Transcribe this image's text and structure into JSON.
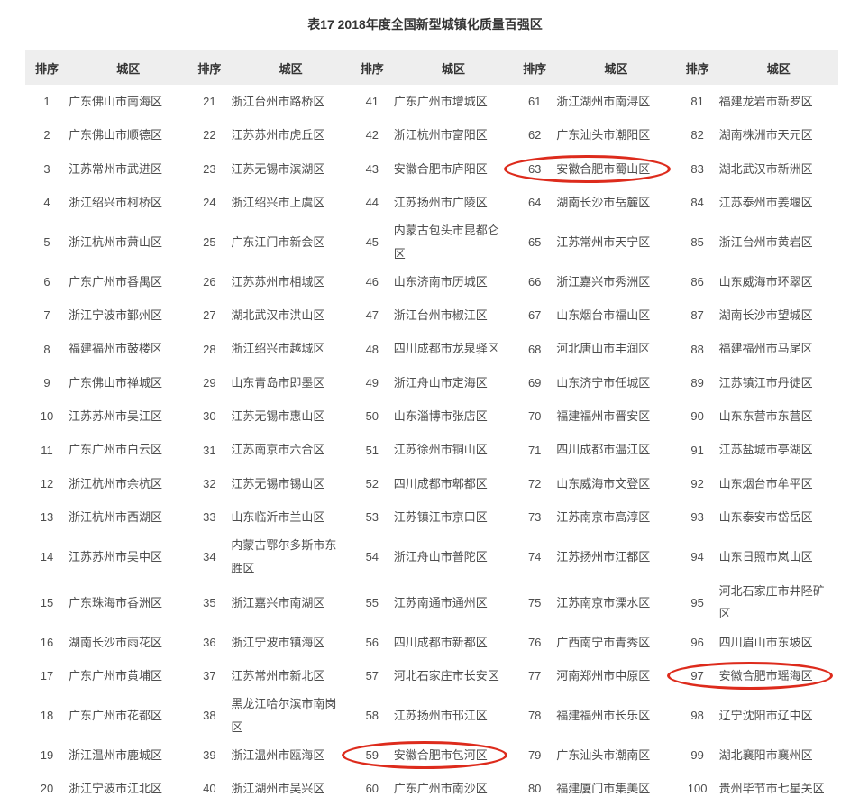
{
  "title": "表17 2018年度全国新型城镇化质量百强区",
  "header": {
    "rank_label": "排序",
    "district_label": "城区"
  },
  "colors": {
    "circle": "#dd2b1c",
    "header_bg": "#eeeeee",
    "text": "#4d4d4d"
  },
  "columns": [
    {
      "entries": [
        {
          "rank": "1",
          "district": "广东佛山市南海区",
          "circled": false
        },
        {
          "rank": "2",
          "district": "广东佛山市顺德区",
          "circled": false
        },
        {
          "rank": "3",
          "district": "江苏常州市武进区",
          "circled": false
        },
        {
          "rank": "4",
          "district": "浙江绍兴市柯桥区",
          "circled": false
        },
        {
          "rank": "5",
          "district": "浙江杭州市萧山区",
          "circled": false
        },
        {
          "rank": "6",
          "district": "广东广州市番禺区",
          "circled": false
        },
        {
          "rank": "7",
          "district": "浙江宁波市鄞州区",
          "circled": false
        },
        {
          "rank": "8",
          "district": "福建福州市鼓楼区",
          "circled": false
        },
        {
          "rank": "9",
          "district": "广东佛山市禅城区",
          "circled": false
        },
        {
          "rank": "10",
          "district": "江苏苏州市吴江区",
          "circled": false
        },
        {
          "rank": "11",
          "district": "广东广州市白云区",
          "circled": false
        },
        {
          "rank": "12",
          "district": "浙江杭州市余杭区",
          "circled": false
        },
        {
          "rank": "13",
          "district": "浙江杭州市西湖区",
          "circled": false
        },
        {
          "rank": "14",
          "district": "江苏苏州市吴中区",
          "circled": false
        },
        {
          "rank": "15",
          "district": "广东珠海市香洲区",
          "circled": false
        },
        {
          "rank": "16",
          "district": "湖南长沙市雨花区",
          "circled": false
        },
        {
          "rank": "17",
          "district": "广东广州市黄埔区",
          "circled": false
        },
        {
          "rank": "18",
          "district": "广东广州市花都区",
          "circled": false
        },
        {
          "rank": "19",
          "district": "浙江温州市鹿城区",
          "circled": false
        },
        {
          "rank": "20",
          "district": "浙江宁波市江北区",
          "circled": false
        }
      ]
    },
    {
      "entries": [
        {
          "rank": "21",
          "district": "浙江台州市路桥区",
          "circled": false
        },
        {
          "rank": "22",
          "district": "江苏苏州市虎丘区",
          "circled": false
        },
        {
          "rank": "23",
          "district": "江苏无锡市滨湖区",
          "circled": false
        },
        {
          "rank": "24",
          "district": "浙江绍兴市上虞区",
          "circled": false
        },
        {
          "rank": "25",
          "district": "广东江门市新会区",
          "circled": false
        },
        {
          "rank": "26",
          "district": "江苏苏州市相城区",
          "circled": false
        },
        {
          "rank": "27",
          "district": "湖北武汉市洪山区",
          "circled": false
        },
        {
          "rank": "28",
          "district": "浙江绍兴市越城区",
          "circled": false
        },
        {
          "rank": "29",
          "district": "山东青岛市即墨区",
          "circled": false
        },
        {
          "rank": "30",
          "district": "江苏无锡市惠山区",
          "circled": false
        },
        {
          "rank": "31",
          "district": "江苏南京市六合区",
          "circled": false
        },
        {
          "rank": "32",
          "district": "江苏无锡市锡山区",
          "circled": false
        },
        {
          "rank": "33",
          "district": "山东临沂市兰山区",
          "circled": false
        },
        {
          "rank": "34",
          "district": "内蒙古鄂尔多斯市东胜区",
          "circled": false
        },
        {
          "rank": "35",
          "district": "浙江嘉兴市南湖区",
          "circled": false
        },
        {
          "rank": "36",
          "district": "浙江宁波市镇海区",
          "circled": false
        },
        {
          "rank": "37",
          "district": "江苏常州市新北区",
          "circled": false
        },
        {
          "rank": "38",
          "district": "黑龙江哈尔滨市南岗区",
          "circled": false
        },
        {
          "rank": "39",
          "district": "浙江温州市瓯海区",
          "circled": false
        },
        {
          "rank": "40",
          "district": "浙江湖州市吴兴区",
          "circled": false
        }
      ]
    },
    {
      "entries": [
        {
          "rank": "41",
          "district": "广东广州市增城区",
          "circled": false
        },
        {
          "rank": "42",
          "district": "浙江杭州市富阳区",
          "circled": false
        },
        {
          "rank": "43",
          "district": "安徽合肥市庐阳区",
          "circled": false
        },
        {
          "rank": "44",
          "district": "江苏扬州市广陵区",
          "circled": false
        },
        {
          "rank": "45",
          "district": "内蒙古包头市昆都仑区",
          "circled": false
        },
        {
          "rank": "46",
          "district": "山东济南市历城区",
          "circled": false
        },
        {
          "rank": "47",
          "district": "浙江台州市椒江区",
          "circled": false
        },
        {
          "rank": "48",
          "district": "四川成都市龙泉驿区",
          "circled": false
        },
        {
          "rank": "49",
          "district": "浙江舟山市定海区",
          "circled": false
        },
        {
          "rank": "50",
          "district": "山东淄博市张店区",
          "circled": false
        },
        {
          "rank": "51",
          "district": "江苏徐州市铜山区",
          "circled": false
        },
        {
          "rank": "52",
          "district": "四川成都市郫都区",
          "circled": false
        },
        {
          "rank": "53",
          "district": "江苏镇江市京口区",
          "circled": false
        },
        {
          "rank": "54",
          "district": "浙江舟山市普陀区",
          "circled": false
        },
        {
          "rank": "55",
          "district": "江苏南通市通州区",
          "circled": false
        },
        {
          "rank": "56",
          "district": "四川成都市新都区",
          "circled": false
        },
        {
          "rank": "57",
          "district": "河北石家庄市长安区",
          "circled": false
        },
        {
          "rank": "58",
          "district": "江苏扬州市邗江区",
          "circled": false
        },
        {
          "rank": "59",
          "district": "安徽合肥市包河区",
          "circled": true
        },
        {
          "rank": "60",
          "district": "广东广州市南沙区",
          "circled": false
        }
      ]
    },
    {
      "entries": [
        {
          "rank": "61",
          "district": "浙江湖州市南浔区",
          "circled": false
        },
        {
          "rank": "62",
          "district": "广东汕头市潮阳区",
          "circled": false
        },
        {
          "rank": "63",
          "district": "安徽合肥市蜀山区",
          "circled": true
        },
        {
          "rank": "64",
          "district": "湖南长沙市岳麓区",
          "circled": false
        },
        {
          "rank": "65",
          "district": "江苏常州市天宁区",
          "circled": false
        },
        {
          "rank": "66",
          "district": "浙江嘉兴市秀洲区",
          "circled": false
        },
        {
          "rank": "67",
          "district": "山东烟台市福山区",
          "circled": false
        },
        {
          "rank": "68",
          "district": "河北唐山市丰润区",
          "circled": false
        },
        {
          "rank": "69",
          "district": "山东济宁市任城区",
          "circled": false
        },
        {
          "rank": "70",
          "district": "福建福州市晋安区",
          "circled": false
        },
        {
          "rank": "71",
          "district": "四川成都市温江区",
          "circled": false
        },
        {
          "rank": "72",
          "district": "山东威海市文登区",
          "circled": false
        },
        {
          "rank": "73",
          "district": "江苏南京市高淳区",
          "circled": false
        },
        {
          "rank": "74",
          "district": "江苏扬州市江都区",
          "circled": false
        },
        {
          "rank": "75",
          "district": "江苏南京市溧水区",
          "circled": false
        },
        {
          "rank": "76",
          "district": "广西南宁市青秀区",
          "circled": false
        },
        {
          "rank": "77",
          "district": "河南郑州市中原区",
          "circled": false
        },
        {
          "rank": "78",
          "district": "福建福州市长乐区",
          "circled": false
        },
        {
          "rank": "79",
          "district": "广东汕头市潮南区",
          "circled": false
        },
        {
          "rank": "80",
          "district": "福建厦门市集美区",
          "circled": false
        }
      ]
    },
    {
      "entries": [
        {
          "rank": "81",
          "district": "福建龙岩市新罗区",
          "circled": false
        },
        {
          "rank": "82",
          "district": "湖南株洲市天元区",
          "circled": false
        },
        {
          "rank": "83",
          "district": "湖北武汉市新洲区",
          "circled": false
        },
        {
          "rank": "84",
          "district": "江苏泰州市姜堰区",
          "circled": false
        },
        {
          "rank": "85",
          "district": "浙江台州市黄岩区",
          "circled": false
        },
        {
          "rank": "86",
          "district": "山东威海市环翠区",
          "circled": false
        },
        {
          "rank": "87",
          "district": "湖南长沙市望城区",
          "circled": false
        },
        {
          "rank": "88",
          "district": "福建福州市马尾区",
          "circled": false
        },
        {
          "rank": "89",
          "district": "江苏镇江市丹徒区",
          "circled": false
        },
        {
          "rank": "90",
          "district": "山东东营市东营区",
          "circled": false
        },
        {
          "rank": "91",
          "district": "江苏盐城市亭湖区",
          "circled": false
        },
        {
          "rank": "92",
          "district": "山东烟台市牟平区",
          "circled": false
        },
        {
          "rank": "93",
          "district": "山东泰安市岱岳区",
          "circled": false
        },
        {
          "rank": "94",
          "district": "山东日照市岚山区",
          "circled": false
        },
        {
          "rank": "95",
          "district": "河北石家庄市井陉矿区",
          "circled": false
        },
        {
          "rank": "96",
          "district": "四川眉山市东坡区",
          "circled": false
        },
        {
          "rank": "97",
          "district": "安徽合肥市瑶海区",
          "circled": true
        },
        {
          "rank": "98",
          "district": "辽宁沈阳市辽中区",
          "circled": false
        },
        {
          "rank": "99",
          "district": "湖北襄阳市襄州区",
          "circled": false
        },
        {
          "rank": "100",
          "district": "贵州毕节市七星关区",
          "circled": false
        }
      ]
    }
  ]
}
